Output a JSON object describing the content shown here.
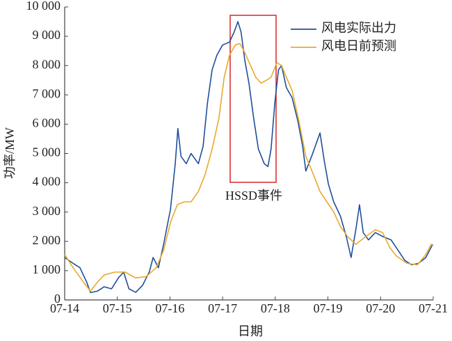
{
  "chart_data": {
    "type": "line",
    "x_label": "日期",
    "y_label": "功率/MW",
    "annotation": "HSSD事件",
    "xlim": [
      0,
      7
    ],
    "xticks": [
      {
        "value": 0,
        "label": "07-14"
      },
      {
        "value": 1,
        "label": "07-15"
      },
      {
        "value": 2,
        "label": "07-16"
      },
      {
        "value": 3,
        "label": "07-17"
      },
      {
        "value": 4,
        "label": "07-18"
      },
      {
        "value": 5,
        "label": "07-19"
      },
      {
        "value": 6,
        "label": "07-20"
      },
      {
        "value": 7,
        "label": "07-21"
      }
    ],
    "ylim": [
      0,
      10000
    ],
    "yticks": [
      0,
      {
        "value": 1000,
        "label": "1 000"
      },
      {
        "value": 2000,
        "label": "2 000"
      },
      {
        "value": 3000,
        "label": "3 000"
      },
      {
        "value": 4000,
        "label": "4 000"
      },
      {
        "value": 5000,
        "label": "5 000"
      },
      {
        "value": 6000,
        "label": "6 000"
      },
      {
        "value": 7000,
        "label": "7 000"
      },
      {
        "value": 8000,
        "label": "8 000"
      },
      {
        "value": 9000,
        "label": "9 000"
      },
      {
        "value": 10000,
        "label": "10 000"
      }
    ],
    "grid": false,
    "legend": "upper right",
    "series": [
      {
        "name": "风电实际出力",
        "color": "#1f4e9c",
        "x": [
          0,
          0.16,
          0.29,
          0.42,
          0.49,
          0.62,
          0.75,
          0.89,
          1.02,
          1.12,
          1.22,
          1.35,
          1.48,
          1.61,
          1.68,
          1.78,
          1.88,
          2.01,
          2.1,
          2.15,
          2.21,
          2.31,
          2.4,
          2.54,
          2.63,
          2.71,
          2.8,
          2.89,
          3.0,
          3.13,
          3.22,
          3.29,
          3.35,
          3.42,
          3.5,
          3.59,
          3.68,
          3.79,
          3.86,
          3.92,
          3.99,
          4.06,
          4.12,
          4.21,
          4.32,
          4.43,
          4.52,
          4.58,
          4.69,
          4.78,
          4.85,
          4.93,
          5.01,
          5.11,
          5.24,
          5.35,
          5.44,
          5.53,
          5.6,
          5.67,
          5.77,
          5.9,
          6.06,
          6.2,
          6.33,
          6.46,
          6.59,
          6.72,
          6.86,
          6.99
        ],
        "values": [
          1450,
          1250,
          1100,
          600,
          250,
          300,
          450,
          380,
          750,
          950,
          380,
          260,
          500,
          970,
          1450,
          1100,
          1900,
          3100,
          4650,
          5850,
          4900,
          4650,
          5000,
          4650,
          5250,
          6700,
          7850,
          8350,
          8700,
          8800,
          9150,
          9500,
          9150,
          8200,
          7400,
          6200,
          5150,
          4650,
          4550,
          5150,
          6700,
          7850,
          8000,
          7250,
          6900,
          6100,
          5250,
          4400,
          4900,
          5350,
          5700,
          4750,
          3950,
          3350,
          2850,
          2150,
          1450,
          2400,
          3250,
          2300,
          2050,
          2300,
          2150,
          2050,
          1700,
          1350,
          1200,
          1250,
          1450,
          1900
        ]
      },
      {
        "name": "风电日前预测",
        "color": "#e8a92c",
        "x": [
          0,
          0.16,
          0.36,
          0.49,
          0.62,
          0.75,
          0.95,
          1.15,
          1.35,
          1.55,
          1.74,
          1.88,
          2.01,
          2.14,
          2.27,
          2.4,
          2.54,
          2.67,
          2.8,
          2.93,
          3.03,
          3.13,
          3.24,
          3.33,
          3.42,
          3.53,
          3.63,
          3.73,
          3.83,
          3.92,
          4.03,
          4.12,
          4.21,
          4.32,
          4.45,
          4.58,
          4.72,
          4.85,
          4.98,
          5.11,
          5.24,
          5.38,
          5.53,
          5.71,
          5.9,
          6.04,
          6.17,
          6.3,
          6.5,
          6.7,
          6.86,
          6.96,
          7.0
        ],
        "values": [
          1550,
          1100,
          600,
          300,
          600,
          850,
          950,
          950,
          750,
          800,
          1100,
          1700,
          2650,
          3250,
          3350,
          3350,
          3700,
          4300,
          5150,
          6200,
          7600,
          8350,
          8700,
          8750,
          8450,
          8000,
          7600,
          7400,
          7500,
          7600,
          8100,
          8000,
          7600,
          7150,
          6100,
          4900,
          4300,
          3700,
          3350,
          3000,
          2500,
          2150,
          1900,
          2150,
          2400,
          2300,
          1800,
          1500,
          1250,
          1200,
          1550,
          1900,
          1850
        ]
      }
    ]
  }
}
